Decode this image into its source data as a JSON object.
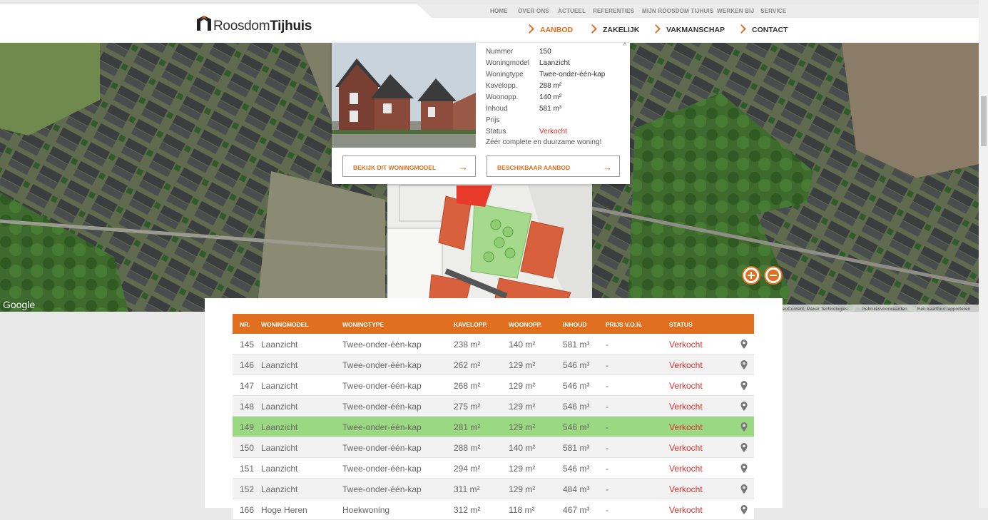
{
  "header": {
    "logo": {
      "part1": "Roosdom",
      "part2": "Tijhuis"
    },
    "top_nav": [
      "HOME",
      "OVER ONS",
      "ACTUEEL",
      "REFERENTIES",
      "MIJN ROOSDOM TIJHUIS",
      "WERKEN BIJ",
      "SERVICE"
    ],
    "main_nav": [
      "AANBOD",
      "ZAKELIJK",
      "VAKMANSCHAP",
      "CONTACT"
    ]
  },
  "popup": {
    "rows": [
      {
        "label": "Nummer",
        "value": "150"
      },
      {
        "label": "Woningmodel",
        "value": "Laanzicht"
      },
      {
        "label": "Woningtype",
        "value": "Twee-onder-één-kap"
      },
      {
        "label": "Kavelopp.",
        "value": "288 m²"
      },
      {
        "label": "Woonopp.",
        "value": "140 m²"
      },
      {
        "label": "Inhoud",
        "value": "581 m³"
      },
      {
        "label": "Prijs"
      },
      {
        "label": "Status",
        "value": "Verkocht"
      }
    ],
    "description": "Zéér complete en duurzame woning!",
    "buttons": [
      "BEKIJK DIT WONINGMODEL",
      "BESCHIKBAAR AANBOD"
    ]
  },
  "map": {
    "google": "Google",
    "attribution": [
      "eoContent, Maxar Technologies",
      "Gebruiksvoorwaarden",
      "Een kaartfout rapporteren"
    ]
  },
  "table": {
    "headers": [
      "NR.",
      "WONINGMODEL",
      "WONINGTYPE",
      "KAVELOPP.",
      "WOONOPP.",
      "INHOUD",
      "PRIJS V.O.N.",
      "STATUS"
    ],
    "rows": [
      [
        "145",
        "Laanzicht",
        "Twee-onder-één-kap",
        "238 m²",
        "140 m²",
        "581 m³",
        "-",
        "Verkocht"
      ],
      [
        "146",
        "Laanzicht",
        "Twee-onder-één-kap",
        "262 m²",
        "129 m²",
        "546 m³",
        "-",
        "Verkocht"
      ],
      [
        "147",
        "Laanzicht",
        "Twee-onder-één-kap",
        "268 m²",
        "129 m²",
        "546 m³",
        "-",
        "Verkocht"
      ],
      [
        "148",
        "Laanzicht",
        "Twee-onder-één-kap",
        "275 m²",
        "129 m²",
        "546 m³",
        "-",
        "Verkocht"
      ],
      [
        "149",
        "Laanzicht",
        "Twee-onder-één-kap",
        "281 m²",
        "129 m²",
        "546 m³",
        "-",
        "Verkocht"
      ],
      [
        "150",
        "Laanzicht",
        "Twee-onder-één-kap",
        "288 m²",
        "140 m²",
        "581 m³",
        "-",
        "Verkocht"
      ],
      [
        "151",
        "Laanzicht",
        "Twee-onder-één-kap",
        "294 m²",
        "129 m²",
        "546 m³",
        "-",
        "Verkocht"
      ],
      [
        "152",
        "Laanzicht",
        "Twee-onder-één-kap",
        "311 m²",
        "129 m²",
        "484 m³",
        "-",
        "Verkocht"
      ],
      [
        "166",
        "Hoge Heren",
        "Hoekwoning",
        "312 m²",
        "118 m²",
        "467 m³",
        "-",
        "Verkocht"
      ]
    ]
  }
}
